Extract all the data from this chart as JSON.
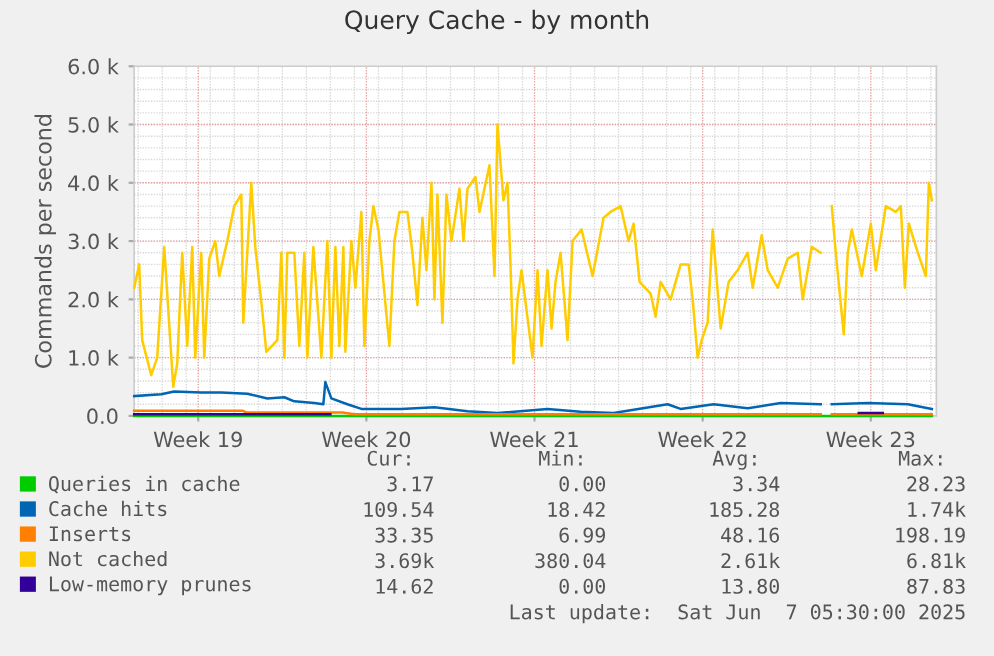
{
  "chart_data": {
    "type": "line",
    "title": "Query Cache - by month",
    "ylabel": "Commands per second",
    "xlim": [
      "2025-05-04T20:00",
      "2025-06-07T05:30"
    ],
    "xticks": [
      {
        "value": "2025-05-07T12:00",
        "label": "Week 19"
      },
      {
        "value": "2025-05-14T12:00",
        "label": "Week 20"
      },
      {
        "value": "2025-05-21T12:00",
        "label": "Week 21"
      },
      {
        "value": "2025-05-28T12:00",
        "label": "Week 22"
      },
      {
        "value": "2025-06-04T12:00",
        "label": "Week 23"
      }
    ],
    "ylim": [
      0,
      6000
    ],
    "yticks": [
      {
        "value": 0,
        "label": "0.0"
      },
      {
        "value": 1000,
        "label": "1.0 k"
      },
      {
        "value": 2000,
        "label": "2.0 k"
      },
      {
        "value": 3000,
        "label": "3.0 k"
      },
      {
        "value": 4000,
        "label": "4.0 k"
      },
      {
        "value": 5000,
        "label": "5.0 k"
      },
      {
        "value": 6000,
        "label": "6.0 k"
      }
    ],
    "grid": true,
    "legend": "bottom",
    "marker": "none",
    "line_style": "solid",
    "series": [
      {
        "name": "Queries in cache",
        "color": "#00cc00",
        "x": [
          "2025-05-04T20:00",
          "2025-06-07T01:00"
        ],
        "values": [
          0,
          0
        ]
      },
      {
        "name": "Cache hits",
        "color": "#0066b3",
        "x": [
          "2025-05-04T20:00",
          "2025-05-05T23:00",
          "2025-05-06T12:00",
          "2025-05-07T15:00",
          "2025-05-08T11:00",
          "2025-05-09T13:00",
          "2025-05-10T09:00",
          "2025-05-11T02:00",
          "2025-05-11T12:00",
          "2025-05-12T08:00",
          "2025-05-12T17:00",
          "2025-05-12T19:00",
          "2025-05-13T01:00",
          "2025-05-13T17:00",
          "2025-05-14T07:00",
          "2025-05-15T23:00",
          "2025-05-17T08:00",
          "2025-05-18T17:00",
          "2025-05-19T23:00",
          "2025-05-22T01:00",
          "2025-05-23T10:00",
          "2025-05-24T19:00",
          "2025-05-27T01:00",
          "2025-05-27T14:00",
          "2025-05-28T23:00",
          "2025-05-30T09:00",
          "2025-05-31T18:00",
          "2025-06-02T10:00",
          "2025-06-02T16:00",
          "2025-06-02T21:00",
          "2025-06-04T09:00",
          "2025-06-06T01:00",
          "2025-06-07T01:00"
        ],
        "values": [
          340,
          370,
          420,
          400,
          400,
          380,
          300,
          320,
          250,
          220,
          200,
          580,
          300,
          200,
          120,
          120,
          150,
          80,
          50,
          120,
          70,
          50,
          200,
          120,
          200,
          130,
          220,
          200,
          null,
          200,
          220,
          200,
          120
        ]
      },
      {
        "name": "Inserts",
        "color": "#ff8000",
        "x": [
          "2025-05-04T20:00",
          "2025-05-09T08:00",
          "2025-05-09T12:00",
          "2025-05-13T12:00",
          "2025-05-14T00:00",
          "2025-06-02T10:00",
          "2025-06-02T16:00",
          "2025-06-02T21:00",
          "2025-06-07T01:00"
        ],
        "values": [
          90,
          90,
          60,
          60,
          30,
          30,
          null,
          30,
          30
        ]
      },
      {
        "name": "Not cached",
        "color": "#ffcc00",
        "x": [
          "2025-05-04T20:00",
          "2025-05-05T01:00",
          "2025-05-05T04:00",
          "2025-05-05T13:00",
          "2025-05-05T19:00",
          "2025-05-06T02:00",
          "2025-05-06T11:00",
          "2025-05-06T15:00",
          "2025-05-06T20:00",
          "2025-05-07T01:00",
          "2025-05-07T06:00",
          "2025-05-07T09:00",
          "2025-05-07T15:00",
          "2025-05-07T18:00",
          "2025-05-07T23:00",
          "2025-05-08T05:00",
          "2025-05-08T09:00",
          "2025-05-08T17:00",
          "2025-05-09T00:00",
          "2025-05-09T07:00",
          "2025-05-09T09:00",
          "2025-05-09T17:00",
          "2025-05-09T21:00",
          "2025-05-10T04:00",
          "2025-05-10T08:00",
          "2025-05-10T19:00",
          "2025-05-10T23:00",
          "2025-05-11T02:00",
          "2025-05-11T05:00",
          "2025-05-11T12:00",
          "2025-05-11T17:00",
          "2025-05-11T22:00",
          "2025-05-12T01:00",
          "2025-05-12T07:00",
          "2025-05-12T15:00",
          "2025-05-12T21:00",
          "2025-05-13T01:00",
          "2025-05-13T05:00",
          "2025-05-13T09:00",
          "2025-05-13T13:00",
          "2025-05-13T15:00",
          "2025-05-13T21:00",
          "2025-05-14T01:00",
          "2025-05-14T07:00",
          "2025-05-14T10:00",
          "2025-05-14T15:00",
          "2025-05-14T19:00",
          "2025-05-15T00:00",
          "2025-05-15T11:00",
          "2025-05-15T16:00",
          "2025-05-15T21:00",
          "2025-05-16T05:00",
          "2025-05-16T10:00",
          "2025-05-16T15:00",
          "2025-05-16T20:00",
          "2025-05-17T00:00",
          "2025-05-17T05:00",
          "2025-05-17T08:00",
          "2025-05-17T11:00",
          "2025-05-17T16:00",
          "2025-05-17T20:00",
          "2025-05-18T01:00",
          "2025-05-18T09:00",
          "2025-05-18T13:00",
          "2025-05-18T17:00",
          "2025-05-19T01:00",
          "2025-05-19T05:00",
          "2025-05-19T15:00",
          "2025-05-19T20:00",
          "2025-05-19T23:00",
          "2025-05-20T05:00",
          "2025-05-20T09:00",
          "2025-05-20T12:00",
          "2025-05-20T15:00",
          "2025-05-20T19:00",
          "2025-05-20T23:00",
          "2025-05-21T10:00",
          "2025-05-21T15:00",
          "2025-05-21T19:00",
          "2025-05-22T01:00",
          "2025-05-22T05:00",
          "2025-05-22T09:00",
          "2025-05-22T14:00",
          "2025-05-22T21:00",
          "2025-05-23T02:00",
          "2025-05-23T11:00",
          "2025-05-23T22:00",
          "2025-05-24T09:00",
          "2025-05-24T16:00",
          "2025-05-25T02:00",
          "2025-05-25T10:00",
          "2025-05-25T15:00",
          "2025-05-25T21:00",
          "2025-05-26T08:00",
          "2025-05-26T13:00",
          "2025-05-26T18:00",
          "2025-05-27T04:00",
          "2025-05-27T14:00",
          "2025-05-27T22:00",
          "2025-05-28T02:00",
          "2025-05-28T07:00",
          "2025-05-28T11:00",
          "2025-05-28T17:00",
          "2025-05-28T22:00",
          "2025-05-29T06:00",
          "2025-05-29T14:00",
          "2025-05-29T23:00",
          "2025-05-30T09:00",
          "2025-05-30T14:00",
          "2025-05-30T23:00",
          "2025-05-31T05:00",
          "2025-05-31T15:00",
          "2025-06-01T01:00",
          "2025-06-01T11:00",
          "2025-06-01T16:00",
          "2025-06-02T01:00",
          "2025-06-02T10:00",
          "2025-06-02T16:00",
          "2025-06-02T21:00",
          "2025-06-03T01:00",
          "2025-06-03T09:00",
          "2025-06-03T13:00",
          "2025-06-03T17:00",
          "2025-06-04T03:00",
          "2025-06-04T12:00",
          "2025-06-04T17:00",
          "2025-06-05T03:00",
          "2025-06-05T13:00",
          "2025-06-05T18:00",
          "2025-06-05T22:00",
          "2025-06-06T02:00",
          "2025-06-06T11:00",
          "2025-06-06T19:00",
          "2025-06-06T22:00",
          "2025-06-07T01:00"
        ],
        "values": [
          2200,
          2600,
          1300,
          700,
          1000,
          2900,
          500,
          900,
          2800,
          1200,
          2900,
          1000,
          2800,
          1000,
          2700,
          3000,
          2400,
          3000,
          3600,
          3800,
          1600,
          4000,
          2900,
          1800,
          1100,
          1300,
          2800,
          1000,
          2800,
          2800,
          1200,
          2800,
          1000,
          2900,
          1000,
          3000,
          1000,
          2900,
          1200,
          2900,
          1100,
          3000,
          2200,
          3500,
          1200,
          3000,
          3600,
          3200,
          1200,
          3000,
          3500,
          3500,
          2800,
          1900,
          3400,
          2500,
          4000,
          2000,
          3800,
          1600,
          3800,
          3000,
          3900,
          3000,
          3900,
          4100,
          3500,
          4300,
          2400,
          5000,
          3700,
          4000,
          2600,
          900,
          2000,
          2500,
          1000,
          2500,
          1200,
          2500,
          1500,
          2300,
          2800,
          1300,
          3000,
          3200,
          2400,
          3400,
          3500,
          3600,
          3000,
          3300,
          2300,
          2100,
          1700,
          2300,
          2000,
          2600,
          2600,
          2000,
          1000,
          1300,
          1600,
          3200,
          1500,
          2300,
          2500,
          2800,
          2200,
          3100,
          2500,
          2200,
          2700,
          2800,
          2000,
          2900,
          2800,
          null,
          3600,
          2800,
          1400,
          2800,
          3200,
          2400,
          3300,
          2500,
          3600,
          3500,
          3600,
          2200,
          3300,
          2800,
          2400,
          4000,
          3700
        ]
      },
      {
        "name": "Low-memory prunes",
        "color": "#330099",
        "x": [
          "2025-05-04T20:00",
          "2025-05-13T00:00",
          "2025-05-14T00:00",
          "2025-06-04T00:00",
          "2025-06-05T00:00"
        ],
        "values": [
          30,
          30,
          null,
          50,
          50
        ]
      }
    ],
    "annotations": [
      "Cur:",
      "Min:",
      "Avg:",
      "Max:",
      "3.17",
      "0.00",
      "3.34",
      "28.23",
      "109.54",
      "18.42",
      "185.28",
      "1.74k",
      "33.35",
      "6.99",
      "48.16",
      "198.19",
      "3.69k",
      "380.04",
      "2.61k",
      "6.81k",
      "14.62",
      "0.00",
      "13.80",
      "87.83",
      "Last update:  Sat Jun  7 05:30:00 2025"
    ]
  }
}
